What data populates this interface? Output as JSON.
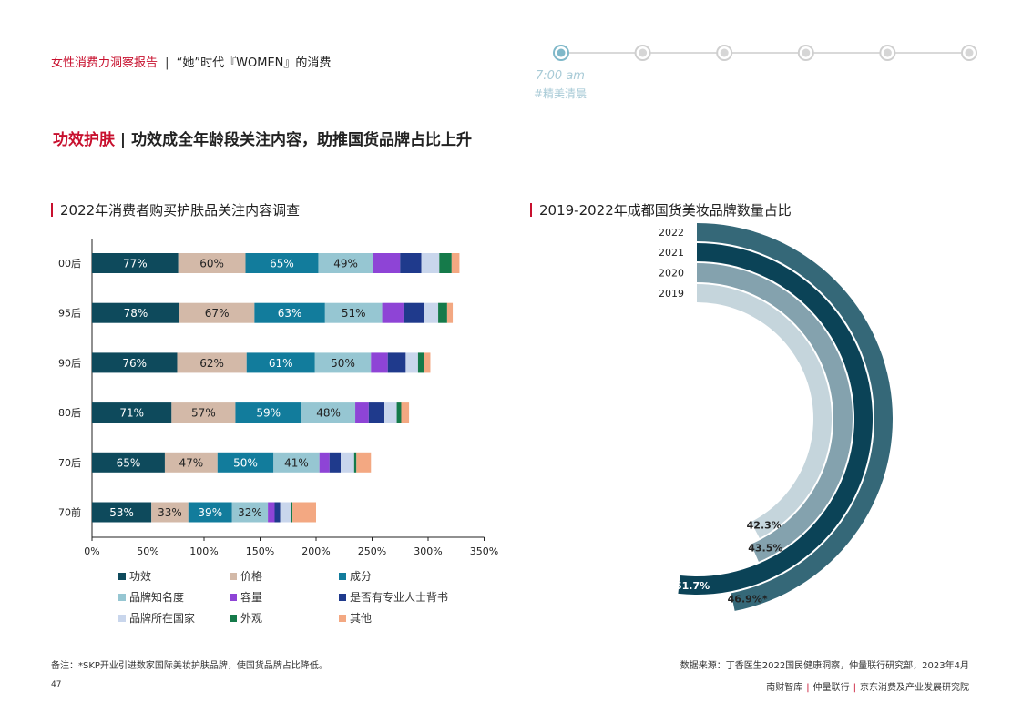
{
  "header": {
    "report": "女性消费力洞察报告",
    "separator": "|",
    "subtitle": "“她”时代『WOMEN』的消费"
  },
  "timeline": {
    "time": "7:00 am",
    "tag": "#精美清晨",
    "dots": 6,
    "active_index": 0,
    "line_color": "#d9d9d9",
    "active_color": "#7fb8c9"
  },
  "page_title": {
    "highlight": "功效护肤",
    "separator": "|",
    "text": "功效成全年龄段关注内容，助推国货品牌占比上升"
  },
  "left_chart_title": "2022年消费者购买护肤品关注内容调查",
  "right_chart_title": "2019-2022年成都国货美妆品牌数量占比",
  "chart_data": [
    {
      "type": "bar",
      "orientation": "horizontal",
      "stacked": true,
      "title": "2022年消费者购买护肤品关注内容调查",
      "categories": [
        "00后",
        "95后",
        "90后",
        "80后",
        "70后",
        "70前"
      ],
      "xlim": [
        0,
        350
      ],
      "xticks": [
        "0%",
        "50%",
        "100%",
        "150%",
        "200%",
        "250%",
        "300%",
        "350%"
      ],
      "series": [
        {
          "name": "功效",
          "color": "#0e4a5c",
          "values": [
            77,
            78,
            76,
            71,
            65,
            53
          ],
          "labels": [
            "77%",
            "78%",
            "76%",
            "71%",
            "65%",
            "53%"
          ]
        },
        {
          "name": "价格",
          "color": "#d3b9a8",
          "values": [
            60,
            67,
            62,
            57,
            47,
            33
          ],
          "labels": [
            "60%",
            "67%",
            "62%",
            "57%",
            "47%",
            "33%"
          ]
        },
        {
          "name": "成分",
          "color": "#127c9c",
          "values": [
            65,
            63,
            61,
            59,
            50,
            39
          ],
          "labels": [
            "65%",
            "63%",
            "61%",
            "59%",
            "50%",
            "39%"
          ]
        },
        {
          "name": "品牌知名度",
          "color": "#96c6d2",
          "values": [
            49,
            51,
            50,
            48,
            41,
            32
          ],
          "labels": [
            "49%",
            "51%",
            "50%",
            "48%",
            "41%",
            "32%"
          ]
        },
        {
          "name": "容量",
          "color": "#8e44d6",
          "values": [
            24,
            19,
            15,
            12,
            9,
            6
          ],
          "labels": [
            "",
            "",
            "",
            "",
            "",
            ""
          ]
        },
        {
          "name": "是否有专业人士背书",
          "color": "#1f3a8c",
          "values": [
            19,
            18,
            16,
            14,
            10,
            5
          ],
          "labels": [
            "",
            "",
            "",
            "",
            "",
            ""
          ]
        },
        {
          "name": "品牌所在国家",
          "color": "#c9d6ec",
          "values": [
            16,
            13,
            11,
            11,
            12,
            10
          ],
          "labels": [
            "",
            "",
            "",
            "",
            "",
            ""
          ]
        },
        {
          "name": "外观",
          "color": "#157a4a",
          "values": [
            11,
            8,
            5,
            4,
            2,
            1
          ],
          "labels": [
            "",
            "",
            "",
            "",
            "",
            ""
          ]
        },
        {
          "name": "其他",
          "color": "#f3a882",
          "values": [
            7,
            5,
            6,
            7,
            13,
            21
          ],
          "labels": [
            "",
            "",
            "",
            "",
            "",
            ""
          ]
        }
      ],
      "legend_position": "bottom",
      "grid": false
    },
    {
      "type": "radial_bar",
      "title": "2019-2022年成都国货美妆品牌数量占比",
      "categories": [
        "2019",
        "2020",
        "2021",
        "2022"
      ],
      "values": [
        42.3,
        43.5,
        51.7,
        46.9
      ],
      "value_labels": [
        "42.3%",
        "43.5%",
        "51.7%",
        "46.9%*"
      ],
      "colors": [
        "#c5d5dc",
        "#84a2ae",
        "#0b4357",
        "#356878"
      ]
    }
  ],
  "legend": [
    {
      "label": "功效",
      "color": "#0e4a5c"
    },
    {
      "label": "价格",
      "color": "#d3b9a8"
    },
    {
      "label": "成分",
      "color": "#127c9c"
    },
    {
      "label": "品牌知名度",
      "color": "#96c6d2"
    },
    {
      "label": "容量",
      "color": "#8e44d6"
    },
    {
      "label": "是否有专业人士背书",
      "color": "#1f3a8c"
    },
    {
      "label": "品牌所在国家",
      "color": "#c9d6ec"
    },
    {
      "label": "外观",
      "color": "#157a4a"
    },
    {
      "label": "其他",
      "color": "#f3a882"
    }
  ],
  "footnote": "备注：*SKP开业引进数家国际美妆护肤品牌，使国货品牌占比降低。",
  "source": "数据来源：丁香医生2022国民健康洞察，仲量联行研究部，2023年4月",
  "page_number": "47",
  "footer": {
    "org1": "南财智库",
    "org2": "仲量联行",
    "org3": "京东消费及产业发展研究院",
    "sep": "|"
  }
}
